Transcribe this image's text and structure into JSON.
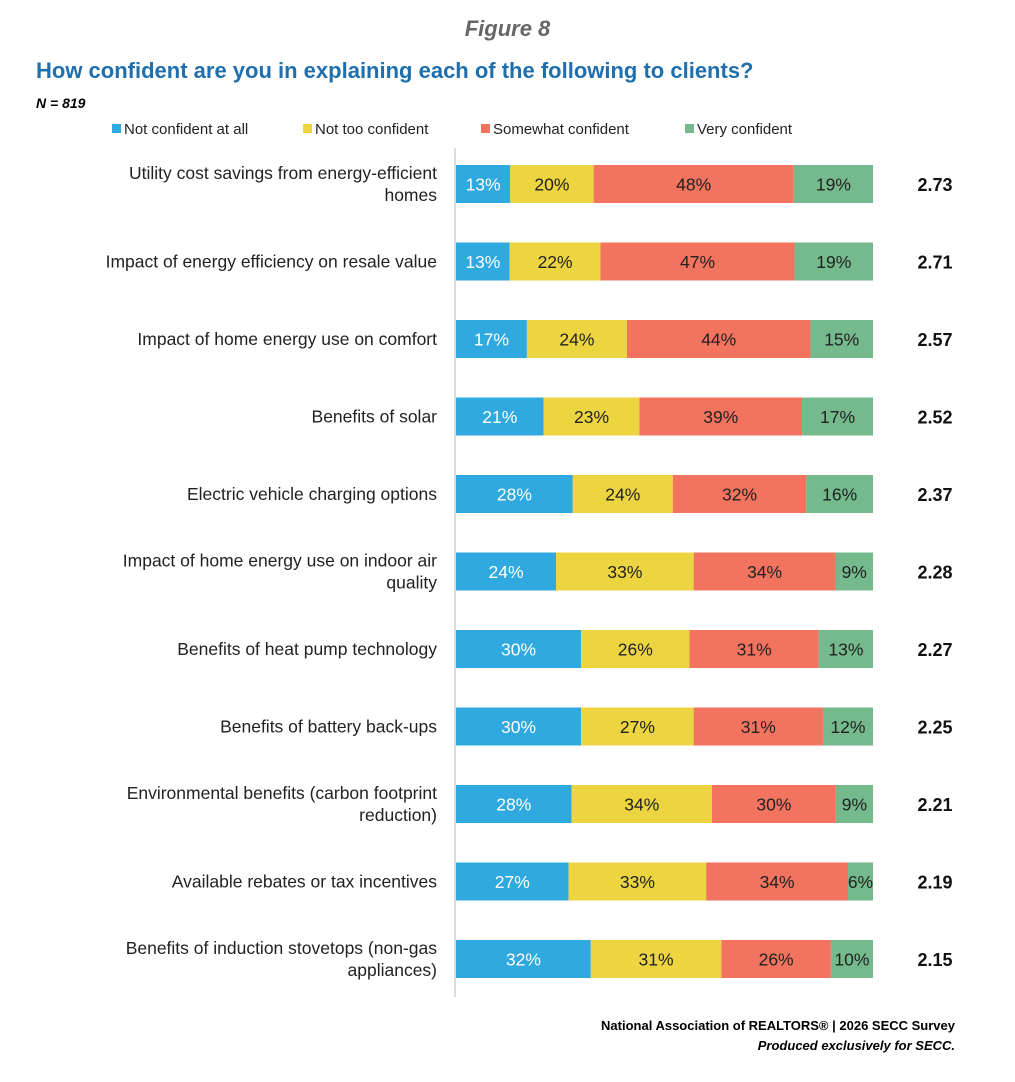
{
  "header": {
    "figure_label": "Figure 8",
    "question": "How confident are you in explaining each of the following to clients?",
    "sample_size": "N = 819"
  },
  "footer": {
    "source": "National Association of REALTORS® | 2026 SECC Survey",
    "note": "Produced exclusively for SECC."
  },
  "chart_data": {
    "type": "bar",
    "orientation": "horizontal",
    "stacked": true,
    "title": "How confident are you in explaining each of the following to clients?",
    "xlabel": "",
    "ylabel": "",
    "xlim": [
      0,
      100
    ],
    "grid": false,
    "legend_position": "top",
    "categories": [
      "Utility cost savings from energy-efficient homes",
      "Impact of energy efficiency on resale value",
      "Impact of home energy use on comfort",
      "Benefits of solar",
      "Electric vehicle charging options",
      "Impact of home energy use on indoor air quality",
      "Benefits of heat pump technology",
      "Benefits of battery back-ups",
      "Environmental benefits (carbon footprint reduction)",
      "Available rebates or tax incentives",
      "Benefits of induction stovetops (non-gas appliances)"
    ],
    "category_lines": [
      [
        "Utility cost savings from energy-efficient",
        "homes"
      ],
      [
        "Impact of energy efficiency on resale value"
      ],
      [
        "Impact of home energy use on comfort"
      ],
      [
        "Benefits of solar"
      ],
      [
        "Electric vehicle charging options"
      ],
      [
        "Impact of home energy use on indoor air",
        "quality"
      ],
      [
        "Benefits of heat pump technology"
      ],
      [
        "Benefits of battery back-ups"
      ],
      [
        "Environmental benefits (carbon footprint",
        "reduction)"
      ],
      [
        "Available rebates or tax incentives"
      ],
      [
        "Benefits of induction stovetops (non-gas",
        "appliances)"
      ]
    ],
    "series": [
      {
        "name": "Not confident at all",
        "color": "#2fa9e0",
        "values": [
          13,
          13,
          17,
          21,
          28,
          24,
          30,
          30,
          28,
          27,
          32
        ]
      },
      {
        "name": "Not too confident",
        "color": "#ecd540",
        "values": [
          20,
          22,
          24,
          23,
          24,
          33,
          26,
          27,
          34,
          33,
          31
        ]
      },
      {
        "name": "Somewhat confident",
        "color": "#f2735e",
        "values": [
          48,
          47,
          44,
          39,
          32,
          34,
          31,
          31,
          30,
          34,
          26
        ]
      },
      {
        "name": "Very confident",
        "color": "#74ba8c",
        "values": [
          19,
          19,
          15,
          17,
          16,
          9,
          13,
          12,
          9,
          6,
          10
        ]
      }
    ],
    "mean_scores": [
      "2.73",
      "2.71",
      "2.57",
      "2.52",
      "2.37",
      "2.28",
      "2.27",
      "2.25",
      "2.21",
      "2.19",
      "2.15"
    ]
  }
}
